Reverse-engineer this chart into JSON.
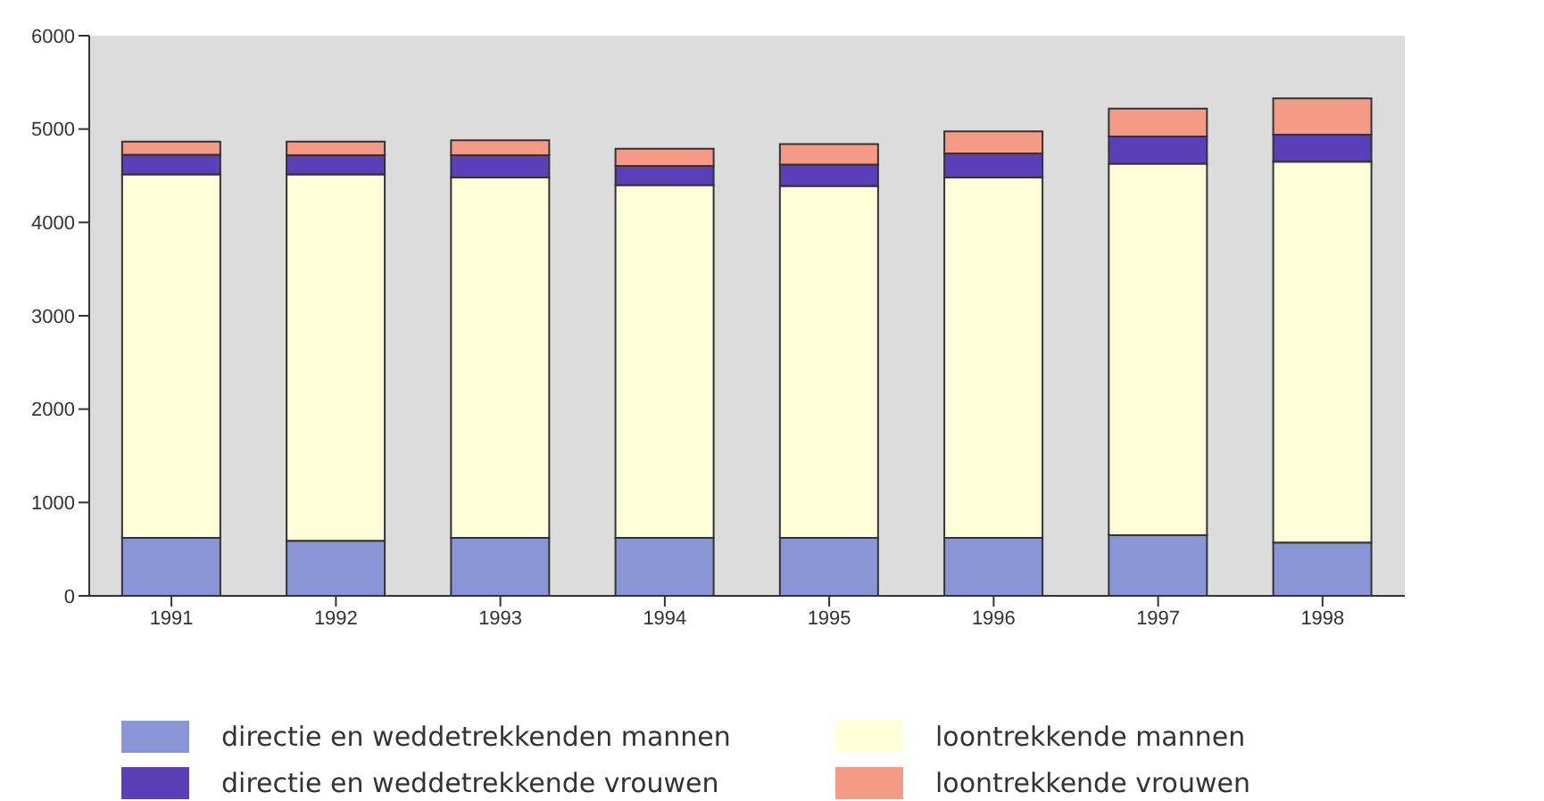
{
  "chart_data": {
    "type": "bar",
    "stacked": true,
    "categories": [
      "1991",
      "1992",
      "1993",
      "1994",
      "1995",
      "1996",
      "1997",
      "1998"
    ],
    "series": [
      {
        "name": "directie en weddetrekkenden mannen",
        "color": "#8a95d6",
        "values": [
          620,
          590,
          620,
          620,
          620,
          620,
          650,
          570
        ]
      },
      {
        "name": "loontrekkende mannen",
        "color": "#fefed8",
        "values": [
          3895,
          3925,
          3860,
          3780,
          3770,
          3860,
          3980,
          4080
        ]
      },
      {
        "name": "directie en weddetrekkende vrouwen",
        "color": "#5a3fb8",
        "values": [
          210,
          205,
          240,
          205,
          230,
          260,
          290,
          290
        ]
      },
      {
        "name": "loontrekkende vrouwen",
        "color": "#f59a85",
        "values": [
          140,
          145,
          160,
          185,
          220,
          235,
          300,
          390
        ]
      }
    ],
    "ylim": [
      0,
      6000
    ],
    "yticks": [
      0,
      1000,
      2000,
      3000,
      4000,
      5000,
      6000
    ],
    "grid": false,
    "legend": "bottom"
  }
}
